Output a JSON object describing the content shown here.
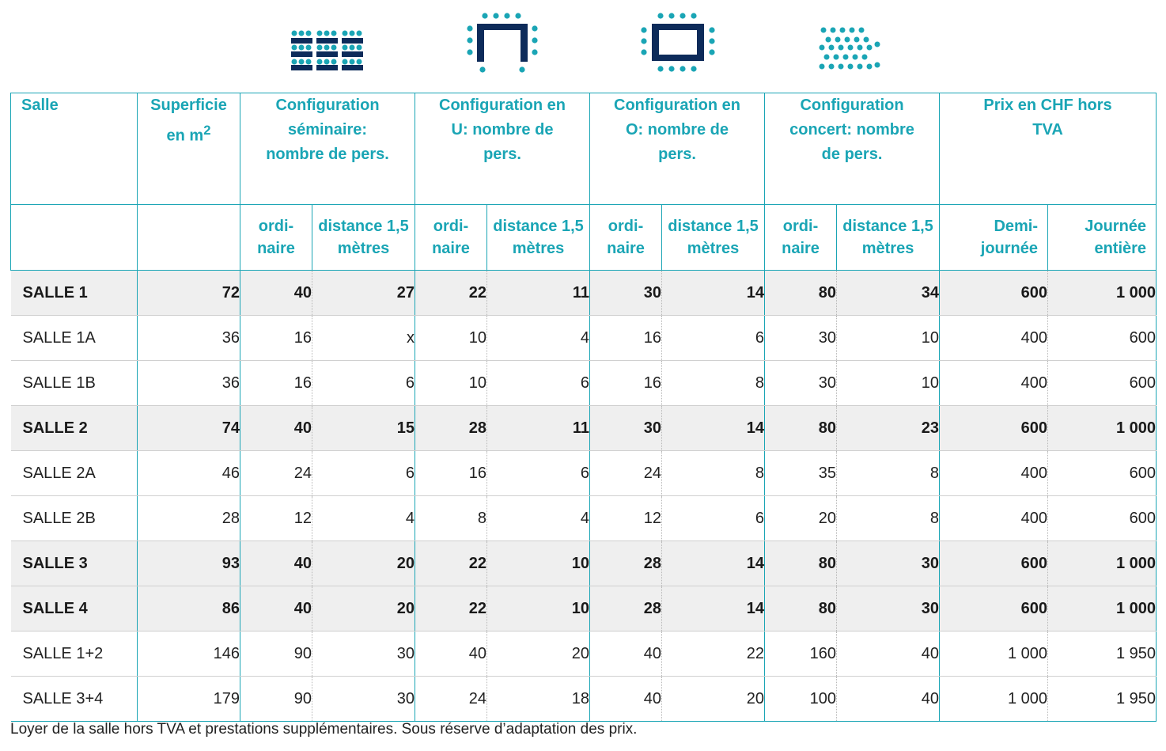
{
  "icons": [
    "seminar-layout-icon",
    "u-shape-layout-icon",
    "o-shape-layout-icon",
    "concert-layout-icon"
  ],
  "colors": {
    "accent": "#1aa5b5",
    "navy": "#0d2b5a",
    "row_highlight": "#efefef"
  },
  "header": {
    "salle": "Salle",
    "superficie": "Superficie en m",
    "superficie_sup": "2",
    "seminaire": "Configuration séminaire: nombre de pers.",
    "u": "Configuration en U: nombre de pers.",
    "o": "Configuration en O: nombre de pers.",
    "concert": "Configuration concert: nombre de pers.",
    "prix": "Prix en CHF hors TVA"
  },
  "subheader": {
    "ordinaire": "ordi- naire",
    "distance": "distance 1,5 mètres",
    "demi": "Demi- journée",
    "journee": "Journée entière"
  },
  "rows": [
    {
      "name": "SALLE 1",
      "area": "72",
      "sem_o": "40",
      "sem_d": "27",
      "u_o": "22",
      "u_d": "11",
      "o_o": "30",
      "o_d": "14",
      "c_o": "80",
      "c_d": "34",
      "half": "600",
      "full": "1 000"
    },
    {
      "name": "SALLE 1A",
      "area": "36",
      "sem_o": "16",
      "sem_d": "x",
      "u_o": "10",
      "u_d": "4",
      "o_o": "16",
      "o_d": "6",
      "c_o": "30",
      "c_d": "10",
      "half": "400",
      "full": "600"
    },
    {
      "name": "SALLE 1B",
      "area": "36",
      "sem_o": "16",
      "sem_d": "6",
      "u_o": "10",
      "u_d": "6",
      "o_o": "16",
      "o_d": "8",
      "c_o": "30",
      "c_d": "10",
      "half": "400",
      "full": "600"
    },
    {
      "name": "SALLE 2",
      "area": "74",
      "sem_o": "40",
      "sem_d": "15",
      "u_o": "28",
      "u_d": "11",
      "o_o": "30",
      "o_d": "14",
      "c_o": "80",
      "c_d": "23",
      "half": "600",
      "full": "1 000"
    },
    {
      "name": "SALLE 2A",
      "area": "46",
      "sem_o": "24",
      "sem_d": "6",
      "u_o": "16",
      "u_d": "6",
      "o_o": "24",
      "o_d": "8",
      "c_o": "35",
      "c_d": "8",
      "half": "400",
      "full": "600"
    },
    {
      "name": "SALLE 2B",
      "area": "28",
      "sem_o": "12",
      "sem_d": "4",
      "u_o": "8",
      "u_d": "4",
      "o_o": "12",
      "o_d": "6",
      "c_o": "20",
      "c_d": "8",
      "half": "400",
      "full": "600"
    },
    {
      "name": "SALLE 3",
      "area": "93",
      "sem_o": "40",
      "sem_d": "20",
      "u_o": "22",
      "u_d": "10",
      "o_o": "28",
      "o_d": "14",
      "c_o": "80",
      "c_d": "30",
      "half": "600",
      "full": "1 000"
    },
    {
      "name": "SALLE 4",
      "area": "86",
      "sem_o": "40",
      "sem_d": "20",
      "u_o": "22",
      "u_d": "10",
      "o_o": "28",
      "o_d": "14",
      "c_o": "80",
      "c_d": "30",
      "half": "600",
      "full": "1 000"
    },
    {
      "name": "SALLE 1+2",
      "area": "146",
      "sem_o": "90",
      "sem_d": "30",
      "u_o": "40",
      "u_d": "20",
      "o_o": "40",
      "o_d": "22",
      "c_o": "160",
      "c_d": "40",
      "half": "1 000",
      "full": "1 950"
    },
    {
      "name": "SALLE 3+4",
      "area": "179",
      "sem_o": "90",
      "sem_d": "30",
      "u_o": "24",
      "u_d": "18",
      "o_o": "40",
      "o_d": "20",
      "c_o": "100",
      "c_d": "40",
      "half": "1 000",
      "full": "1 950"
    }
  ],
  "row_styles": [
    "main",
    "sub",
    "sub",
    "main",
    "sub",
    "sub",
    "main",
    "main",
    "sub",
    "sub"
  ],
  "footnote": "Loyer de la salle hors TVA et prestations supplémentaires. Sous réserve d’adaptation des prix."
}
